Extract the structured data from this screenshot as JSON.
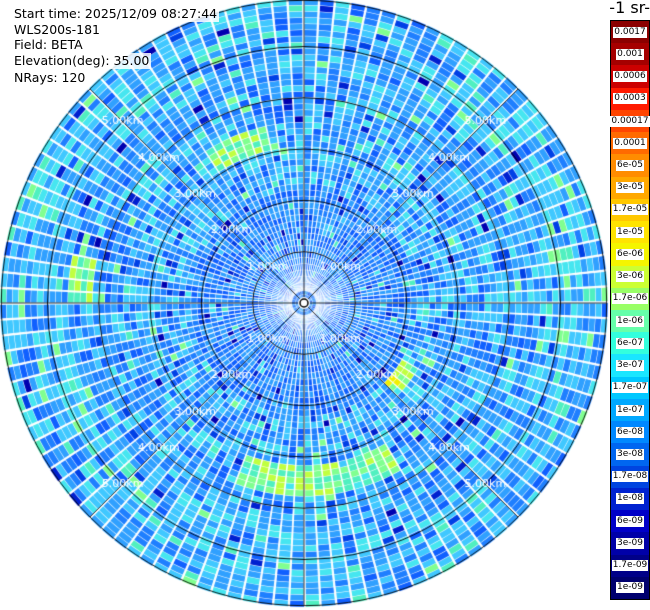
{
  "info": {
    "start_time": "Start time: 2025/12/09 08:27:44",
    "site": "WLS200s-181",
    "field": "Field: BETA",
    "elevation": "Elevation(deg): 35.00",
    "nrays": "NRays: 120"
  },
  "colorbar": {
    "title": "-1 sr-",
    "labels": [
      "0.0017",
      "0.001",
      "0.0006",
      "0.0003",
      "0.00017",
      "0.0001",
      "6e-05",
      "3e-05",
      "1.7e-05",
      "1e-05",
      "6e-06",
      "3e-06",
      "1.7e-06",
      "1e-06",
      "6e-07",
      "3e-07",
      "1.7e-07",
      "1e-07",
      "6e-08",
      "3e-08",
      "1.7e-08",
      "1e-08",
      "6e-09",
      "3e-09",
      "1.7e-09",
      "1e-09"
    ],
    "colors": [
      "#8b0000",
      "#a50000",
      "#cc0000",
      "#ff1a00",
      "#ff4500",
      "#ff6a00",
      "#ff8c00",
      "#ffa800",
      "#ffc800",
      "#ffe400",
      "#f5f500",
      "#ccff33",
      "#99ff66",
      "#66ffaa",
      "#33ffdd",
      "#1ae6ff",
      "#00c8ff",
      "#00a8ff",
      "#0088ff",
      "#0066f0",
      "#0044e0",
      "#0022d0",
      "#0000c8",
      "#0000a8",
      "#000088",
      "#00006e"
    ]
  },
  "chart_data": {
    "type": "heatmap",
    "projection": "polar (PPI)",
    "title": "",
    "field": "BETA",
    "elevation_deg": 35.0,
    "nrays": 120,
    "range_rings_km": [
      1.0,
      2.0,
      3.0,
      4.0,
      5.0
    ],
    "ring_labels": [
      "1.00km",
      "2.00km",
      "3.00km",
      "4.00km",
      "5.00km"
    ],
    "max_range_km": 5.9,
    "scale": "log",
    "range_gate_km": 0.12,
    "enhanced_regions": [
      {
        "az_start": 325,
        "az_end": 345,
        "r_start_km": 3.0,
        "r_end_km": 3.5,
        "level": "1.7e-06"
      },
      {
        "az_start": 150,
        "az_end": 200,
        "r_start_km": 3.15,
        "r_end_km": 3.7,
        "level": "1.7e-06"
      },
      {
        "az_start": 118,
        "az_end": 132,
        "r_start_km": 2.15,
        "r_end_km": 2.55,
        "level": "3e-06"
      },
      {
        "az_start": 270,
        "az_end": 280,
        "r_start_km": 4.1,
        "r_end_km": 4.5,
        "level": "1.7e-06"
      },
      {
        "az_start": 240,
        "az_end": 250,
        "r_start_km": 4.6,
        "r_end_km": 5.0,
        "level": "1e-06"
      },
      {
        "az_start": 60,
        "az_end": 100,
        "r_start_km": 4.9,
        "r_end_km": 5.4,
        "level": "1e-06"
      },
      {
        "az_start": 0,
        "az_end": 360,
        "r_start_km": 4.8,
        "r_end_km": 5.8,
        "level": "1e-07"
      }
    ]
  }
}
